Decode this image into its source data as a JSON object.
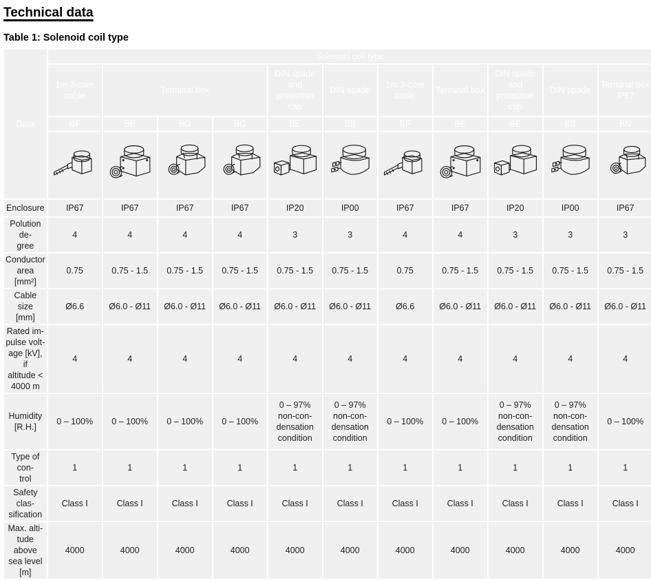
{
  "page": {
    "title": "Technical data",
    "table_caption": "Table 1: Solenoid coil type"
  },
  "colors": {
    "header_gray": "#8c9399",
    "cell_bg": "#f0f0f1",
    "text": "#1d1d1f"
  },
  "table": {
    "corner_label": "Data",
    "top_header": "Solenoid coil type",
    "groups": [
      {
        "label": "1m 3-core cable",
        "span": 1
      },
      {
        "label": "Terminal box",
        "span": 3
      },
      {
        "label": "DIN spade and protection cap",
        "span": 1
      },
      {
        "label": "DIN spade",
        "span": 1
      },
      {
        "label": "1m 3-core cable",
        "span": 1
      },
      {
        "label": "Terminal box",
        "span": 1
      },
      {
        "label": "DIN spade and protection cap",
        "span": 1
      },
      {
        "label": "DIN spade",
        "span": 1
      },
      {
        "label": "Terminal box IP67",
        "span": 1
      }
    ],
    "codes": [
      "BF",
      "BE",
      "BG",
      "BG",
      "BE",
      "BB",
      "BF",
      "BE",
      "BE",
      "BB",
      "BN"
    ],
    "images": [
      "coil-cable-icon",
      "coil-terminal-box-icon",
      "coil-terminal-bg-icon",
      "coil-terminal-bg-icon",
      "coil-din-cap-icon",
      "coil-din-spade-icon",
      "coil-cable-icon",
      "coil-terminal-box-icon",
      "coil-din-cap-icon",
      "coil-din-spade-icon",
      "coil-terminal-ip67-icon"
    ],
    "rows": [
      {
        "label": "Enclosure",
        "values": [
          "IP67",
          "IP67",
          "IP67",
          "IP67",
          "IP20",
          "IP00",
          "IP67",
          "IP67",
          "IP20",
          "IP00",
          "IP67"
        ]
      },
      {
        "label": "Polution de-\ngree",
        "values": [
          "4",
          "4",
          "4",
          "4",
          "3",
          "3",
          "4",
          "4",
          "3",
          "3",
          "3"
        ]
      },
      {
        "label": "Conductor\narea [mm²]",
        "values": [
          "0.75",
          "0.75 - 1.5",
          "0.75 - 1.5",
          "0.75 - 1.5",
          "0.75 - 1.5",
          "0.75 - 1.5",
          "0.75",
          "0.75 - 1.5",
          "0.75 - 1.5",
          "0.75 - 1.5",
          "0.75 - 1.5"
        ]
      },
      {
        "label": "Cable size\n[mm]",
        "values": [
          "Ø6.6",
          "Ø6.0 - Ø11",
          "Ø6.0 - Ø11",
          "Ø6.0 - Ø11",
          "Ø6.0 - Ø11",
          "Ø6.0 - Ø11",
          "Ø6.6",
          "Ø6.0 - Ø11",
          "Ø6.0 - Ø11",
          "Ø6.0 - Ø11",
          "Ø6.0 - Ø11"
        ]
      },
      {
        "label": "Rated im-\npulse volt-\nage [kV], if\naltitude <\n4000 m",
        "values": [
          "4",
          "4",
          "4",
          "4",
          "4",
          "4",
          "4",
          "4",
          "4",
          "4",
          "4"
        ]
      },
      {
        "label": "Humidity\n[R.H.]",
        "values": [
          "0 – 100%",
          "0 – 100%",
          "0 – 100%",
          "0 – 100%",
          "0 – 97%\nnon-con-\ndensation\ncondition",
          "0 – 97%\nnon-con-\ndensation\ncondition",
          "0 – 100%",
          "0 – 100%",
          "0 – 97%\nnon-con-\ndensation\ncondition",
          "0 – 97%\nnon-con-\ndensation\ncondition",
          "0 – 100%"
        ]
      },
      {
        "label": "Type of con-\ntrol",
        "values": [
          "1",
          "1",
          "1",
          "1",
          "1",
          "1",
          "1",
          "1",
          "1",
          "1",
          "1"
        ]
      },
      {
        "label": "Safety clas-\nsification",
        "values": [
          "Class I",
          "Class I",
          "Class I",
          "Class I",
          "Class I",
          "Class I",
          "Class I",
          "Class I",
          "Class I",
          "Class I",
          "Class I"
        ]
      },
      {
        "label": "Max. alti-\ntude above\nsea level [m]",
        "values": [
          "4000",
          "4000",
          "4000",
          "4000",
          "4000",
          "4000",
          "4000",
          "4000",
          "4000",
          "4000",
          "4000"
        ]
      }
    ]
  }
}
